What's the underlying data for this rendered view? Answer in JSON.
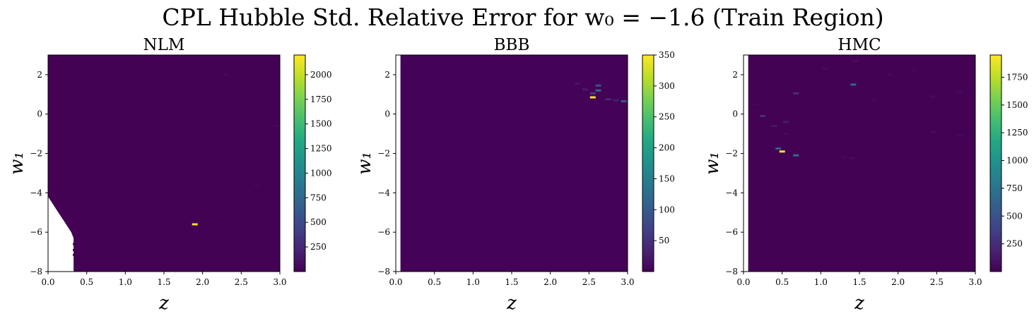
{
  "chart_data": [
    {
      "type": "heatmap",
      "suptitle": "CPL Hubble Std. Relative Error for w₀ = −1.6 (Train Region)",
      "title": "NLM",
      "xlabel": "z",
      "ylabel": "w₁",
      "xlim": [
        0.0,
        3.0
      ],
      "ylim": [
        -8,
        3
      ],
      "xticks": [
        "0.0",
        "0.5",
        "1.0",
        "1.5",
        "2.0",
        "2.5",
        "3.0"
      ],
      "yticks": [
        "2",
        "0",
        "−2",
        "−4",
        "−6",
        "−8"
      ],
      "colorbar": {
        "range": [
          0,
          2200
        ],
        "ticks": [
          "2000",
          "1750",
          "1500",
          "1250",
          "1000",
          "750",
          "500",
          "250"
        ]
      },
      "background_value": 5,
      "missing_region": [
        [
          0.0,
          -4.2
        ],
        [
          0.05,
          -4.5
        ],
        [
          0.1,
          -4.8
        ],
        [
          0.15,
          -5.1
        ],
        [
          0.2,
          -5.4
        ],
        [
          0.25,
          -5.7
        ],
        [
          0.3,
          -6.0
        ],
        [
          0.33,
          -6.3
        ],
        [
          0.33,
          -8
        ],
        [
          0.0,
          -8
        ]
      ],
      "missing_cells_note": "",
      "hotspots": [
        {
          "z": 1.9,
          "w1": -5.6,
          "value": 2150
        },
        {
          "z": 2.3,
          "w1": 2.0,
          "value": 60
        },
        {
          "z": 2.7,
          "w1": -3.6,
          "value": 40
        },
        {
          "z": 2.95,
          "w1": -0.6,
          "value": 40
        }
      ]
    },
    {
      "type": "heatmap",
      "title": "BBB",
      "xlabel": "z",
      "ylabel": "w₁",
      "xlim": [
        0.0,
        3.0
      ],
      "ylim": [
        -8,
        3
      ],
      "xticks": [
        "0.0",
        "0.5",
        "1.0",
        "1.5",
        "2.0",
        "2.5",
        "3.0"
      ],
      "yticks": [
        "2",
        "0",
        "−2",
        "−4",
        "−6",
        "−8"
      ],
      "colorbar": {
        "range": [
          0,
          350
        ],
        "ticks": [
          "350",
          "300",
          "250",
          "200",
          "150",
          "100",
          "50"
        ]
      },
      "background_value": 2,
      "missing_region": [
        [
          0.0,
          3
        ],
        [
          0.06,
          3
        ],
        [
          0.06,
          -8
        ],
        [
          0.0,
          -8
        ]
      ],
      "hotspots": [
        {
          "z": 2.55,
          "w1": 0.85,
          "value": 345
        },
        {
          "z": 2.62,
          "w1": 1.2,
          "value": 120
        },
        {
          "z": 2.62,
          "w1": 1.45,
          "value": 90
        },
        {
          "z": 2.55,
          "w1": 1.05,
          "value": 60
        },
        {
          "z": 2.95,
          "w1": 0.65,
          "value": 100
        },
        {
          "z": 2.75,
          "w1": 0.75,
          "value": 40
        },
        {
          "z": 2.45,
          "w1": 1.25,
          "value": 25
        },
        {
          "z": 2.35,
          "w1": 1.55,
          "value": 20
        },
        {
          "z": 2.85,
          "w1": 0.7,
          "value": 30
        }
      ]
    },
    {
      "type": "heatmap",
      "title": "HMC",
      "xlabel": "z",
      "ylabel": "w₁",
      "xlim": [
        0.0,
        3.0
      ],
      "ylim": [
        -8,
        3
      ],
      "xticks": [
        "0.0",
        "0.5",
        "1.0",
        "1.5",
        "2.0",
        "2.5",
        "3.0"
      ],
      "yticks": [
        "2",
        "0",
        "−2",
        "−4",
        "−6",
        "−8"
      ],
      "colorbar": {
        "range": [
          0,
          1950
        ],
        "ticks": [
          "1750",
          "1500",
          "1250",
          "1000",
          "750",
          "500",
          "250"
        ]
      },
      "background_value": 5,
      "missing_region": [
        [
          0.0,
          3
        ],
        [
          0.06,
          3
        ],
        [
          0.06,
          -8
        ],
        [
          0.0,
          -8
        ]
      ],
      "hotspots": [
        {
          "z": 0.5,
          "w1": -1.9,
          "value": 1900
        },
        {
          "z": 0.45,
          "w1": -1.75,
          "value": 600
        },
        {
          "z": 0.68,
          "w1": -2.1,
          "value": 700
        },
        {
          "z": 1.42,
          "w1": 1.5,
          "value": 650
        },
        {
          "z": 0.68,
          "w1": 1.05,
          "value": 250
        },
        {
          "z": 0.25,
          "w1": -0.1,
          "value": 250
        },
        {
          "z": 0.4,
          "w1": -0.6,
          "value": 120
        },
        {
          "z": 0.55,
          "w1": -0.4,
          "value": 150
        },
        {
          "z": 1.45,
          "w1": 2.7,
          "value": 60
        },
        {
          "z": 1.9,
          "w1": 2.0,
          "value": 60
        },
        {
          "z": 2.45,
          "w1": 0.9,
          "value": 60
        },
        {
          "z": 2.45,
          "w1": -0.9,
          "value": 60
        },
        {
          "z": 2.8,
          "w1": -1.1,
          "value": 60
        },
        {
          "z": 2.8,
          "w1": 1.1,
          "value": 60
        },
        {
          "z": 1.7,
          "w1": 0.7,
          "value": 40
        },
        {
          "z": 1.3,
          "w1": -2.2,
          "value": 60
        },
        {
          "z": 1.4,
          "w1": -2.25,
          "value": 60
        },
        {
          "z": 0.15,
          "w1": 0.5,
          "value": 40
        },
        {
          "z": 1.05,
          "w1": 2.3,
          "value": 50
        },
        {
          "z": 0.55,
          "w1": -1.0,
          "value": 60
        },
        {
          "z": 2.2,
          "w1": 2.2,
          "value": 40
        }
      ]
    }
  ]
}
